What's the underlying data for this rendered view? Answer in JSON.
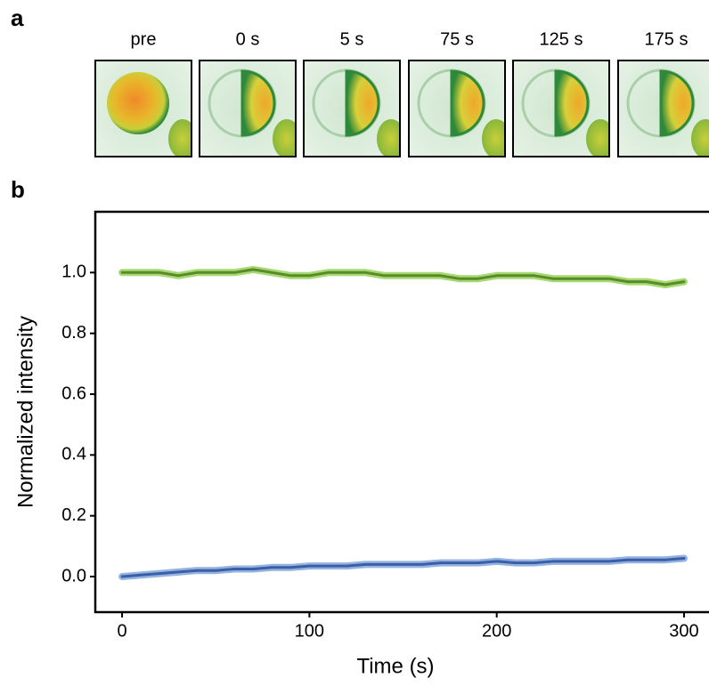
{
  "panel_a": {
    "label": "a",
    "frames": [
      "pre",
      "0 s",
      "5 s",
      "75 s",
      "125 s",
      "175 s"
    ]
  },
  "chart_data": {
    "type": "line",
    "panel_label": "b",
    "x_label": "Time (s)",
    "y_label": "Normalized intensity",
    "x": [
      0,
      10,
      20,
      30,
      40,
      50,
      60,
      70,
      80,
      90,
      100,
      110,
      120,
      130,
      140,
      150,
      160,
      170,
      180,
      190,
      200,
      210,
      220,
      230,
      240,
      250,
      260,
      270,
      280,
      290,
      300
    ],
    "series": [
      {
        "color": "#5a8a2a",
        "band_color": "#8fd14f",
        "values": [
          1.0,
          1.0,
          1.0,
          0.99,
          1.0,
          1.0,
          1.0,
          1.01,
          1.0,
          0.99,
          0.99,
          1.0,
          1.0,
          1.0,
          0.99,
          0.99,
          0.99,
          0.99,
          0.98,
          0.98,
          0.99,
          0.99,
          0.99,
          0.98,
          0.98,
          0.98,
          0.98,
          0.97,
          0.97,
          0.96,
          0.97
        ]
      },
      {
        "color": "#3a5fa8",
        "band_color": "#7aa0d8",
        "values": [
          0.0,
          0.005,
          0.01,
          0.015,
          0.02,
          0.02,
          0.025,
          0.025,
          0.03,
          0.03,
          0.035,
          0.035,
          0.035,
          0.04,
          0.04,
          0.04,
          0.04,
          0.045,
          0.045,
          0.045,
          0.05,
          0.045,
          0.045,
          0.05,
          0.05,
          0.05,
          0.05,
          0.055,
          0.055,
          0.055,
          0.06
        ]
      }
    ],
    "xlim": [
      -14.3,
      313.8
    ],
    "ylim": [
      -0.117,
      1.2
    ],
    "xticks": [
      0,
      100,
      200,
      300
    ],
    "yticks": [
      {
        "value": 0,
        "label": "0.0"
      },
      0.2,
      0.4,
      0.6,
      0.8,
      {
        "value": 1,
        "label": "1.0"
      }
    ]
  }
}
